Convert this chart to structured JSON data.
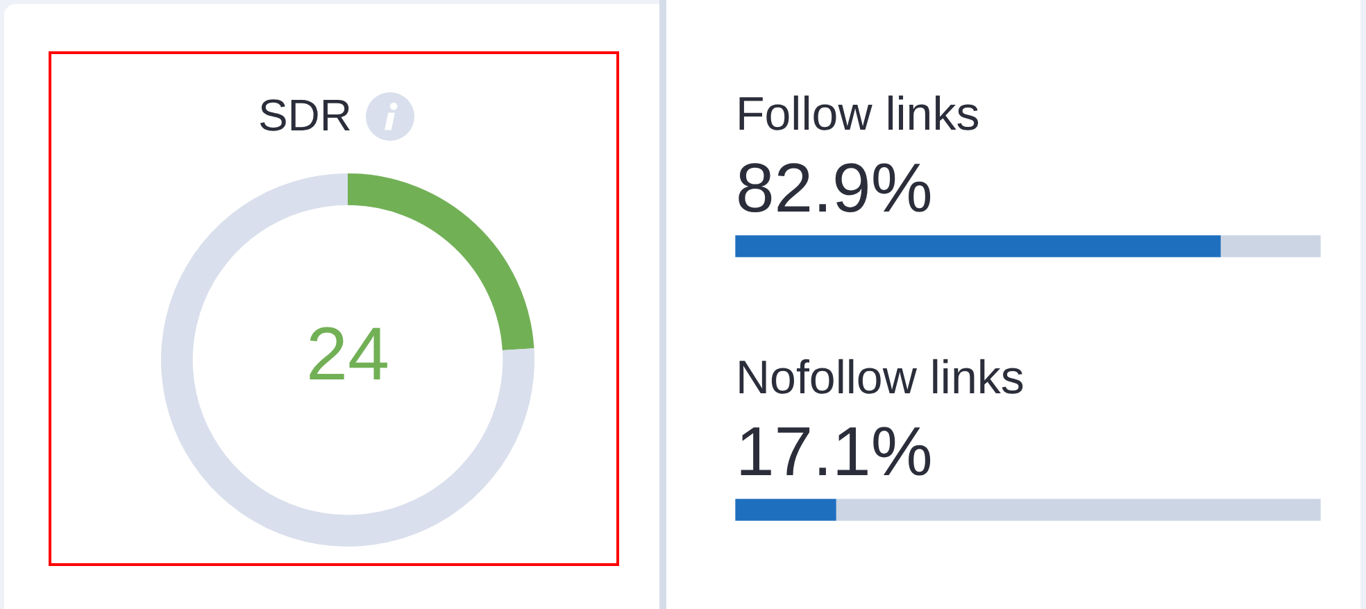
{
  "chart_data": [
    {
      "type": "donut",
      "title": "SDR",
      "categories": [
        null,
        null
      ],
      "values": [
        24,
        76
      ],
      "colors": [
        "#72b056",
        "#d9dfec"
      ],
      "value_labels": [
        "24",
        null
      ]
    },
    {
      "type": "bar",
      "orientation": "horizontal",
      "stacked": true,
      "categories": [
        "Follow links",
        "Nofollow links"
      ],
      "series": [
        {
          "color": "#1f6fbf",
          "values": [
            82.9,
            17.1
          ],
          "value_labels": [
            "82.9%",
            "17.1%"
          ]
        },
        {
          "color": "#ccd5e4",
          "values": [
            17.1,
            82.9
          ]
        }
      ],
      "xlim": [
        0,
        100
      ],
      "tick_labels": "y"
    }
  ]
}
